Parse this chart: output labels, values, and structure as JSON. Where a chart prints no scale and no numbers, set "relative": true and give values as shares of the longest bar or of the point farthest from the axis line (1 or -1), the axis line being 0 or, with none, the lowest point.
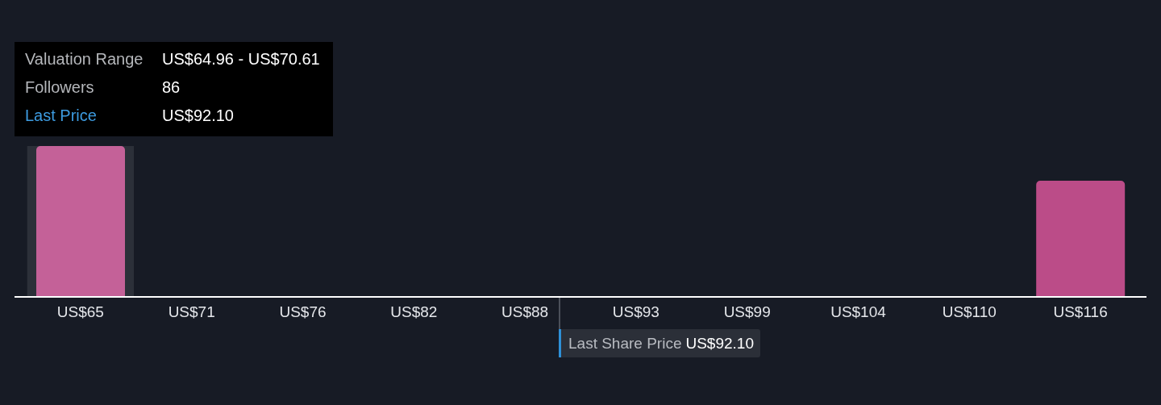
{
  "chart_data": {
    "type": "bar",
    "relative": true,
    "categories": [
      "US$65",
      "US$71",
      "US$76",
      "US$82",
      "US$88",
      "US$93",
      "US$99",
      "US$104",
      "US$110",
      "US$116"
    ],
    "values": [
      1,
      0,
      0,
      0,
      0,
      0,
      0,
      0,
      0,
      0.77
    ],
    "colors": [
      "#c46198",
      "#bb4c88",
      "#bb4c88",
      "#bb4c88",
      "#bb4c88",
      "#bb4c88",
      "#bb4c88",
      "#bb4c88",
      "#bb4c88",
      "#bb4c88"
    ],
    "bands": [
      {
        "axis": "x",
        "from": "US$65",
        "to": "US$65",
        "color": "#2c3039"
      }
    ],
    "annotations": [
      "Valuation Range",
      "US$64.96 - US$70.61",
      "Followers",
      "86",
      "Last Price",
      "US$92.10",
      "Last Share Price US$92.10"
    ]
  }
}
